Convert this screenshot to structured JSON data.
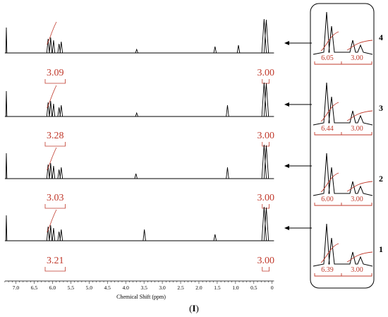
{
  "figure_label": "I",
  "chart_data": {
    "type": "line",
    "title": "",
    "xlabel": "Chemical Shift (ppm)",
    "ylabel": "",
    "xlim": [
      7.3,
      -0.1
    ],
    "x_reversed": true,
    "xticks": [
      7.0,
      6.5,
      6.0,
      5.5,
      5.0,
      4.5,
      4.0,
      3.5,
      3.0,
      2.5,
      2.0,
      1.5,
      1.0,
      0.5,
      0
    ],
    "xtick_labels": [
      "7.0",
      "6.5",
      "6.0",
      "5.5",
      "5.0",
      "4.5",
      "4.0",
      "3.5",
      "3.0",
      "2.5",
      "2.0",
      "1.5",
      "1.0",
      "0.5",
      "0"
    ],
    "grid": false,
    "spectrum_color": "#000000",
    "integral_color": "#c0392b",
    "spectra": [
      {
        "label": "4",
        "peaks_ppm": [
          7.26,
          6.12,
          6.05,
          5.97,
          5.82,
          5.76,
          3.7,
          1.56,
          0.92,
          0.22,
          0.16
        ],
        "integrals": [
          {
            "value": "3.09",
            "from_ppm": 6.2,
            "to_ppm": 5.65
          },
          {
            "value": "3.00",
            "from_ppm": 0.27,
            "to_ppm": 0.08
          }
        ],
        "inset_integrals": [
          "6.05",
          "3.00"
        ]
      },
      {
        "label": "3",
        "peaks_ppm": [
          7.26,
          6.12,
          6.05,
          5.97,
          5.82,
          5.76,
          3.7,
          1.22,
          0.22,
          0.16
        ],
        "integrals": [
          {
            "value": "3.28",
            "from_ppm": 6.2,
            "to_ppm": 5.65
          },
          {
            "value": "3.00",
            "from_ppm": 0.27,
            "to_ppm": 0.08
          }
        ],
        "inset_integrals": [
          "6.44",
          "3.00"
        ]
      },
      {
        "label": "2",
        "peaks_ppm": [
          7.26,
          6.12,
          6.05,
          5.97,
          5.82,
          5.76,
          3.72,
          1.22,
          0.22,
          0.16
        ],
        "integrals": [
          {
            "value": "3.03",
            "from_ppm": 6.2,
            "to_ppm": 5.65
          },
          {
            "value": "3.00",
            "from_ppm": 0.27,
            "to_ppm": 0.08
          }
        ],
        "inset_integrals": [
          "6.00",
          "3.00"
        ]
      },
      {
        "label": "1",
        "peaks_ppm": [
          7.26,
          6.12,
          6.05,
          5.97,
          5.82,
          5.76,
          3.49,
          1.56,
          0.22,
          0.16
        ],
        "integrals": [
          {
            "value": "3.21",
            "from_ppm": 6.2,
            "to_ppm": 5.65
          },
          {
            "value": "3.00",
            "from_ppm": 0.27,
            "to_ppm": 0.08
          }
        ],
        "inset_integrals": [
          "6.39",
          "3.00"
        ]
      }
    ]
  }
}
